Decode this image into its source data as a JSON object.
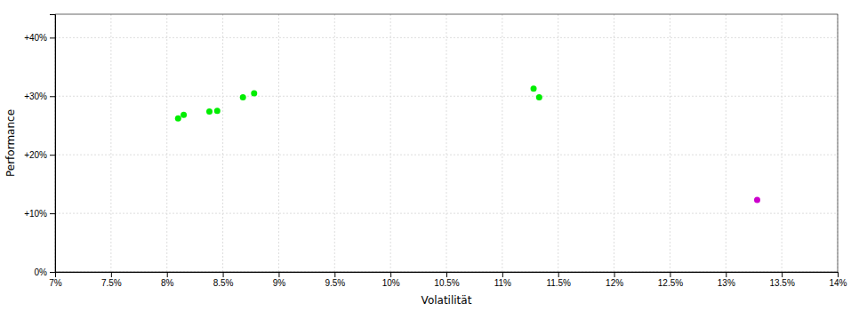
{
  "chart_data": {
    "type": "scatter",
    "xlabel": "Volatilität",
    "ylabel": "Performance",
    "xlim": [
      0.07,
      0.14
    ],
    "ylim": [
      0.0,
      0.44
    ],
    "xticks": [
      {
        "value": 0.07,
        "label": "7%"
      },
      {
        "value": 0.075,
        "label": "7.5%"
      },
      {
        "value": 0.08,
        "label": "8%"
      },
      {
        "value": 0.085,
        "label": "8.5%"
      },
      {
        "value": 0.09,
        "label": "9%"
      },
      {
        "value": 0.095,
        "label": "9.5%"
      },
      {
        "value": 0.1,
        "label": "10%"
      },
      {
        "value": 0.105,
        "label": "10.5%"
      },
      {
        "value": 0.11,
        "label": "11%"
      },
      {
        "value": 0.115,
        "label": "11.5%"
      },
      {
        "value": 0.12,
        "label": "12%"
      },
      {
        "value": 0.125,
        "label": "12.5%"
      },
      {
        "value": 0.13,
        "label": "13%"
      },
      {
        "value": 0.135,
        "label": "13.5%"
      },
      {
        "value": 0.14,
        "label": "14%"
      }
    ],
    "yticks": [
      {
        "value": 0.0,
        "label": "0%"
      },
      {
        "value": 0.1,
        "label": "+10%"
      },
      {
        "value": 0.2,
        "label": "+20%"
      },
      {
        "value": 0.3,
        "label": "+30%"
      },
      {
        "value": 0.4,
        "label": "+40%"
      }
    ],
    "grid": true,
    "series": [
      {
        "color": "#00ee00",
        "x": [
          0.081,
          0.0815,
          0.0838,
          0.0845,
          0.0868,
          0.0878,
          0.1128,
          0.1133
        ],
        "values": [
          0.262,
          0.268,
          0.274,
          0.275,
          0.298,
          0.305,
          0.313,
          0.298
        ]
      },
      {
        "color": "#cc00cc",
        "x": [
          0.1328
        ],
        "values": [
          0.123
        ]
      }
    ]
  }
}
